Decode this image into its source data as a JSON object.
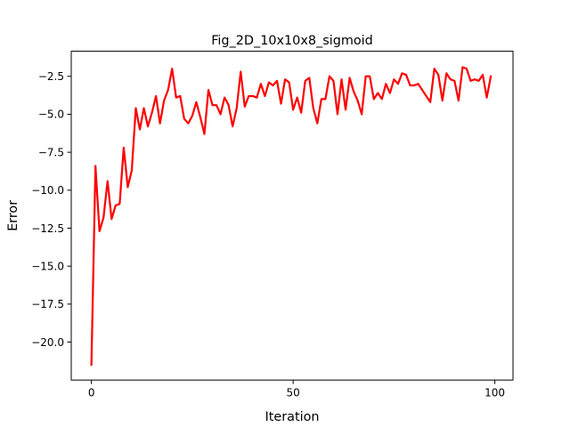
{
  "chart_data": {
    "type": "line",
    "title": "Fig_2D_10x10x8_sigmoid",
    "xlabel": "Iteration",
    "ylabel": "Error",
    "xlim": [
      -5,
      104.5
    ],
    "ylim": [
      -22.5,
      -0.85
    ],
    "xticks": [
      0,
      50,
      100
    ],
    "xtick_labels": [
      "0",
      "50",
      "100"
    ],
    "yticks": [
      -20.0,
      -17.5,
      -15.0,
      -12.5,
      -10.0,
      -7.5,
      -5.0,
      -2.5
    ],
    "ytick_labels": [
      "−20.0",
      "−17.5",
      "−15.0",
      "−12.5",
      "−10.0",
      "−7.5",
      "−5.0",
      "−2.5"
    ],
    "grid": false,
    "legend": "none",
    "color": "#ff0000",
    "series": [
      {
        "x": [
          0,
          1,
          2,
          3,
          4,
          5,
          6,
          7,
          8,
          9,
          10,
          11,
          12,
          13,
          14,
          15,
          16,
          17,
          18,
          19,
          20,
          21,
          22,
          23,
          24,
          25,
          26,
          27,
          28,
          29,
          30,
          31,
          32,
          33,
          34,
          35,
          36,
          37,
          38,
          39,
          40,
          41,
          42,
          43,
          44,
          45,
          46,
          47,
          48,
          49,
          50,
          51,
          52,
          53,
          54,
          55,
          56,
          57,
          58,
          59,
          60,
          61,
          62,
          63,
          64,
          65,
          66,
          67,
          68,
          69,
          70,
          71,
          72,
          73,
          74,
          75,
          76,
          77,
          78,
          79,
          80,
          81,
          82,
          83,
          84,
          85,
          86,
          87,
          88,
          89,
          90,
          91,
          92,
          93,
          94,
          95,
          96,
          97,
          98,
          99
        ],
        "y": [
          -21.5,
          -8.4,
          -12.7,
          -11.8,
          -9.4,
          -11.9,
          -11,
          -10.9,
          -7.2,
          -9.8,
          -8.7,
          -4.6,
          -6,
          -4.6,
          -5.8,
          -4.9,
          -3.8,
          -5.6,
          -4.1,
          -3.4,
          -2,
          -3.9,
          -3.8,
          -5.3,
          -5.6,
          -5.1,
          -4.2,
          -5.2,
          -6.3,
          -3.4,
          -4.4,
          -4.4,
          -5,
          -3.9,
          -4.4,
          -5.8,
          -4.6,
          -2.2,
          -4.5,
          -3.8,
          -3.8,
          -3.9,
          -3,
          -3.8,
          -2.9,
          -3.1,
          -2.8,
          -4.3,
          -2.7,
          -2.9,
          -4.7,
          -3.9,
          -4.9,
          -2.8,
          -2.6,
          -4.6,
          -5.6,
          -4,
          -4,
          -2.5,
          -2.8,
          -5,
          -2.7,
          -4.7,
          -2.6,
          -3.5,
          -4.1,
          -5,
          -2.5,
          -2.5,
          -4,
          -3.6,
          -4,
          -3,
          -3.6,
          -2.7,
          -3,
          -2.3,
          -2.4,
          -3.1,
          -3.1,
          -3,
          -3.4,
          -3.8,
          -4.2,
          -2,
          -2.4,
          -4.1,
          -2.3,
          -2.7,
          -2.8,
          -4.1,
          -1.9,
          -2,
          -2.8,
          -2.7,
          -2.8,
          -2.4,
          -3.9,
          -2.5
        ]
      }
    ]
  }
}
